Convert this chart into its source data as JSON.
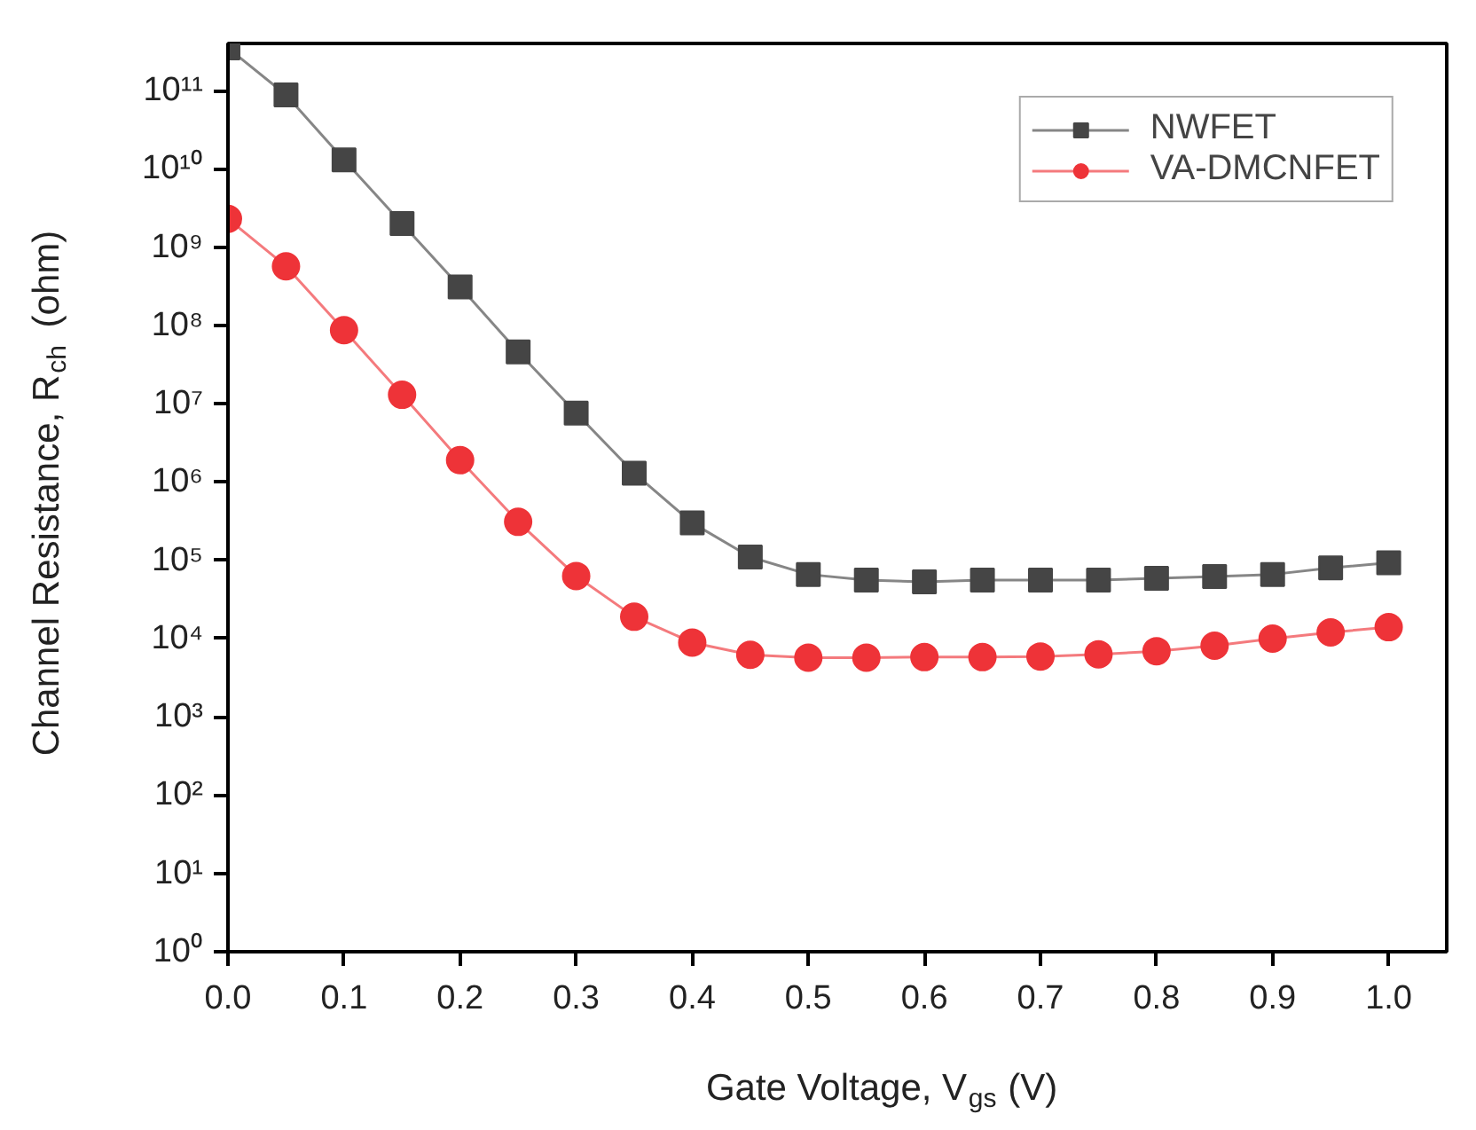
{
  "chart_data": {
    "type": "line",
    "xlabel": "Gate Voltage, V$_{gs}$ (V)",
    "ylabel": "Channel Resistance, R$_{ch}$ (ohm)",
    "x": [
      0,
      0.05,
      0.1,
      0.15,
      0.2,
      0.25,
      0.3,
      0.35,
      0.4,
      0.45,
      0.5,
      0.55,
      0.6,
      0.65,
      0.7,
      0.75,
      0.8,
      0.85,
      0.9,
      0.95,
      1.0
    ],
    "xlim": [
      0,
      1.05
    ],
    "xticks": [
      {
        "value": 0,
        "label": "0.0"
      },
      {
        "value": 0.1,
        "label": "0.1"
      },
      {
        "value": 0.2,
        "label": "0.2"
      },
      {
        "value": 0.3,
        "label": "0.3"
      },
      {
        "value": 0.4,
        "label": "0.4"
      },
      {
        "value": 0.5,
        "label": "0.5"
      },
      {
        "value": 0.6,
        "label": "0.6"
      },
      {
        "value": 0.7,
        "label": "0.7"
      },
      {
        "value": 0.8,
        "label": "0.8"
      },
      {
        "value": 0.9,
        "label": "0.9"
      },
      {
        "value": 1.0,
        "label": "1.0"
      }
    ],
    "ylim": [
      1,
      400000000000.0
    ],
    "yticks": [
      {
        "value": 1,
        "label": "10⁰"
      },
      {
        "value": 10,
        "label": "10¹"
      },
      {
        "value": 100,
        "label": "10²"
      },
      {
        "value": 1000,
        "label": "10³"
      },
      {
        "value": 10000,
        "label": "10⁴"
      },
      {
        "value": 100000,
        "label": "10⁵"
      },
      {
        "value": 1000000,
        "label": "10⁶"
      },
      {
        "value": 10000000,
        "label": "10⁷"
      },
      {
        "value": 100000000,
        "label": "10⁸"
      },
      {
        "value": 1000000000,
        "label": "10⁹"
      },
      {
        "value": 10000000000,
        "label": "10¹⁰"
      },
      {
        "value": 100000000000,
        "label": "10¹¹"
      }
    ],
    "log": true,
    "grid": false,
    "legend": "top right",
    "line_style": "solid",
    "series": [
      {
        "name": "NWFET",
        "color": "#454545",
        "marker": "square",
        "values": [
          350000000000.0,
          88000000000.0,
          13000000000.0,
          2000000000.0,
          310000000.0,
          46000000.0,
          7600000.0,
          1300000.0,
          300000.0,
          110000.0,
          66000.0,
          56000.0,
          53000.0,
          56000.0,
          56000.0,
          56000.0,
          59000.0,
          62000.0,
          66000.0,
          80000.0,
          93000.0
        ]
      },
      {
        "name": "VA-DMCNFET",
        "color": "#ee3338",
        "marker": "circle",
        "values": [
          2300000000.0,
          570000000.0,
          87000000.0,
          13000000.0,
          1900000.0,
          310000.0,
          63000.0,
          19000.0,
          8900.0,
          6200.0,
          5700.0,
          5700.0,
          5800.0,
          5800.0,
          5900.0,
          6300.0,
          6900.0,
          8100.0,
          10000.0,
          12000.0,
          14000.0
        ]
      }
    ]
  }
}
